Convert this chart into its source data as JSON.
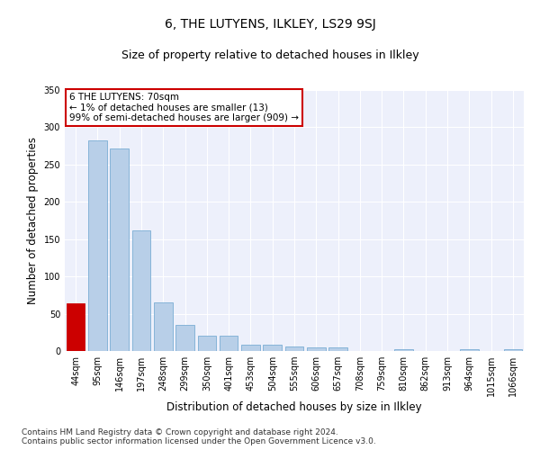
{
  "title": "6, THE LUTYENS, ILKLEY, LS29 9SJ",
  "subtitle": "Size of property relative to detached houses in Ilkley",
  "xlabel": "Distribution of detached houses by size in Ilkley",
  "ylabel": "Number of detached properties",
  "categories": [
    "44sqm",
    "95sqm",
    "146sqm",
    "197sqm",
    "248sqm",
    "299sqm",
    "350sqm",
    "401sqm",
    "453sqm",
    "504sqm",
    "555sqm",
    "606sqm",
    "657sqm",
    "708sqm",
    "759sqm",
    "810sqm",
    "862sqm",
    "913sqm",
    "964sqm",
    "1015sqm",
    "1066sqm"
  ],
  "values": [
    64,
    282,
    272,
    162,
    65,
    35,
    20,
    20,
    9,
    9,
    6,
    5,
    5,
    0,
    0,
    3,
    0,
    0,
    3,
    0,
    3
  ],
  "bar_color": "#b8cfe8",
  "bar_edge_color": "#7aadd4",
  "highlight_bar_index": 0,
  "highlight_bar_color": "#cc0000",
  "highlight_bar_edge_color": "#cc0000",
  "annotation_text": "6 THE LUTYENS: 70sqm\n← 1% of detached houses are smaller (13)\n99% of semi-detached houses are larger (909) →",
  "annotation_box_facecolor": "#ffffff",
  "annotation_box_edgecolor": "#cc0000",
  "ylim": [
    0,
    350
  ],
  "yticks": [
    0,
    50,
    100,
    150,
    200,
    250,
    300,
    350
  ],
  "footer_text": "Contains HM Land Registry data © Crown copyright and database right 2024.\nContains public sector information licensed under the Open Government Licence v3.0.",
  "bg_color": "#edf0fb",
  "title_fontsize": 10,
  "subtitle_fontsize": 9,
  "axis_label_fontsize": 8.5,
  "tick_fontsize": 7,
  "annotation_fontsize": 7.5,
  "footer_fontsize": 6.5
}
